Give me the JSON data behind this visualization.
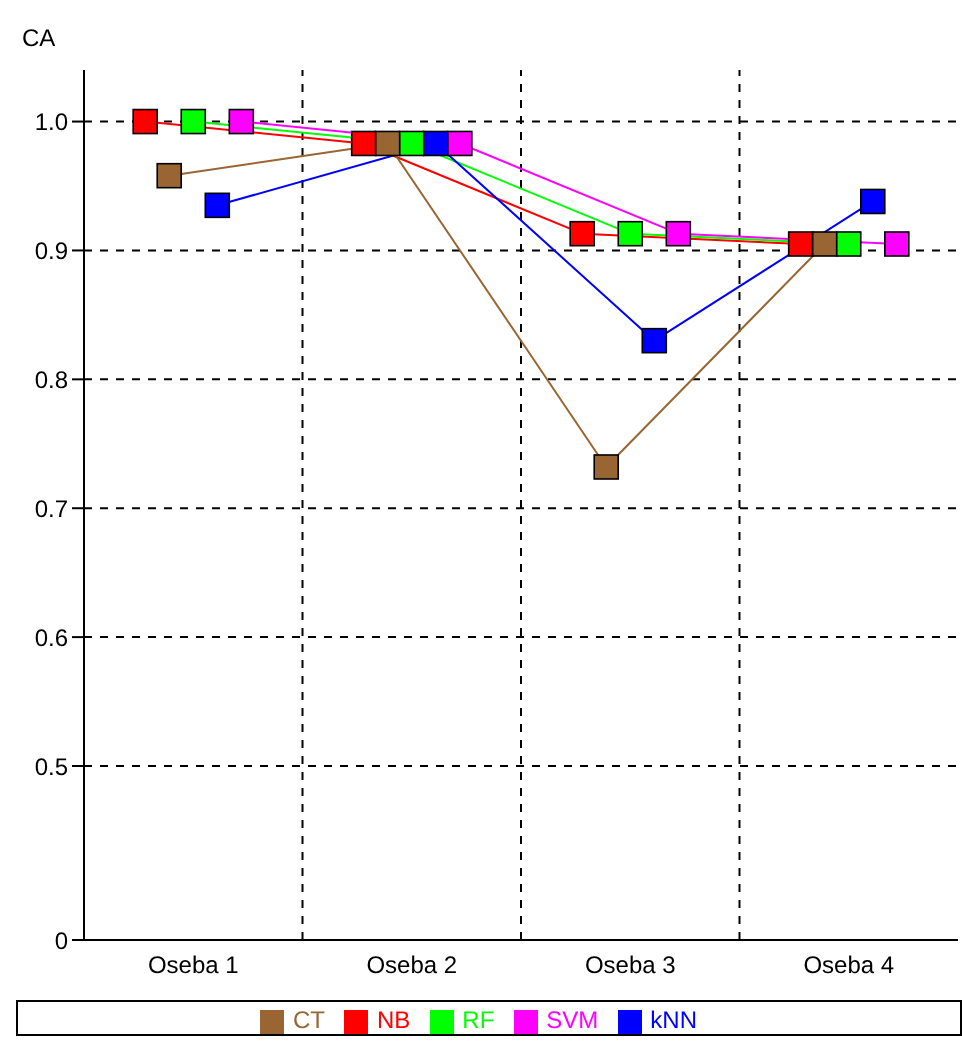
{
  "chart_data": {
    "type": "line",
    "ylabel": "CA",
    "categories": [
      "Oseba 1",
      "Oseba 2",
      "Oseba 3",
      "Oseba 4"
    ],
    "series": [
      {
        "name": "NB",
        "color": "#ff0000",
        "values": [
          1.0,
          0.983,
          0.913,
          0.905
        ]
      },
      {
        "name": "CT",
        "color": "#996633",
        "values": [
          0.958,
          0.983,
          0.732,
          0.905
        ]
      },
      {
        "name": "RF",
        "color": "#00ff00",
        "values": [
          1.0,
          0.983,
          0.913,
          0.905
        ]
      },
      {
        "name": "kNN",
        "color": "#0000ff",
        "values": [
          0.935,
          0.983,
          0.83,
          0.938
        ]
      },
      {
        "name": "SVM",
        "color": "#ff00ff",
        "values": [
          1.0,
          0.983,
          0.913,
          0.905
        ]
      }
    ],
    "ylim": [
      0.365,
      1.04
    ],
    "yticks": [
      {
        "value": 0.365,
        "label": "0"
      },
      0.5,
      0.6,
      0.7,
      0.8,
      0.9,
      {
        "value": 1.0,
        "label": "1.0"
      }
    ],
    "grid": true,
    "legend": "bottom",
    "marker": "square",
    "line_style": "solid"
  }
}
